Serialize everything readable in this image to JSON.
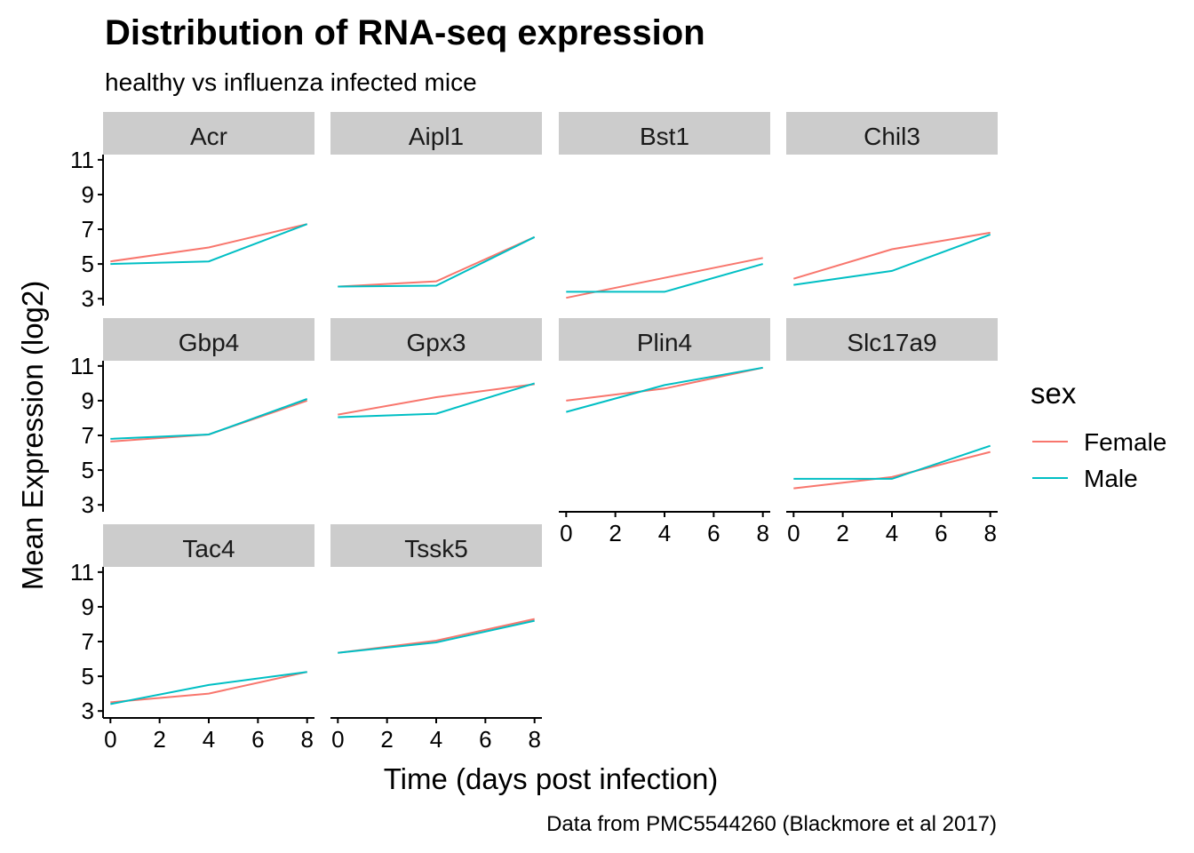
{
  "chart_data": {
    "type": "line",
    "title": "Distribution of RNA-seq expression",
    "subtitle": "healthy vs influenza infected mice",
    "xlabel": "Time (days post infection)",
    "ylabel": "Mean Expression (log2)",
    "caption": "Data from PMC5544260 (Blackmore et al 2017)",
    "x_ticks": [
      "0",
      "2",
      "4",
      "6",
      "8"
    ],
    "y_ticks": [
      "3",
      "5",
      "7",
      "9",
      "11"
    ],
    "xlim": [
      -0.3,
      8.3
    ],
    "ylim": [
      2.6,
      11.3
    ],
    "grid": false,
    "legend": {
      "title": "sex",
      "position": "right",
      "entries": [
        {
          "name": "Female",
          "color": "#F8766D"
        },
        {
          "name": "Male",
          "color": "#00BFC4"
        }
      ]
    },
    "x": [
      0,
      4,
      8
    ],
    "panels": [
      {
        "name": "Acr",
        "series": [
          {
            "name": "Female",
            "values": [
              5.15,
              5.95,
              7.3
            ]
          },
          {
            "name": "Male",
            "values": [
              5.0,
              5.15,
              7.3
            ]
          }
        ]
      },
      {
        "name": "Aipl1",
        "series": [
          {
            "name": "Female",
            "values": [
              3.7,
              4.0,
              6.55
            ]
          },
          {
            "name": "Male",
            "values": [
              3.7,
              3.75,
              6.55
            ]
          }
        ]
      },
      {
        "name": "Bst1",
        "series": [
          {
            "name": "Female",
            "values": [
              3.05,
              4.2,
              5.35
            ]
          },
          {
            "name": "Male",
            "values": [
              3.4,
              3.4,
              5.0
            ]
          }
        ]
      },
      {
        "name": "Chil3",
        "series": [
          {
            "name": "Female",
            "values": [
              4.15,
              5.85,
              6.8
            ]
          },
          {
            "name": "Male",
            "values": [
              3.8,
              4.6,
              6.7
            ]
          }
        ]
      },
      {
        "name": "Gbp4",
        "series": [
          {
            "name": "Female",
            "values": [
              6.65,
              7.05,
              9.0
            ]
          },
          {
            "name": "Male",
            "values": [
              6.8,
              7.05,
              9.1
            ]
          }
        ]
      },
      {
        "name": "Gpx3",
        "series": [
          {
            "name": "Female",
            "values": [
              8.2,
              9.2,
              9.95
            ]
          },
          {
            "name": "Male",
            "values": [
              8.05,
              8.25,
              10.0
            ]
          }
        ]
      },
      {
        "name": "Plin4",
        "series": [
          {
            "name": "Female",
            "values": [
              9.0,
              9.7,
              10.9
            ]
          },
          {
            "name": "Male",
            "values": [
              8.35,
              9.9,
              10.9
            ]
          }
        ]
      },
      {
        "name": "Slc17a9",
        "series": [
          {
            "name": "Female",
            "values": [
              3.95,
              4.6,
              6.05
            ]
          },
          {
            "name": "Male",
            "values": [
              4.5,
              4.5,
              6.4
            ]
          }
        ]
      },
      {
        "name": "Tac4",
        "series": [
          {
            "name": "Female",
            "values": [
              3.5,
              4.0,
              5.25
            ]
          },
          {
            "name": "Male",
            "values": [
              3.4,
              4.5,
              5.25
            ]
          }
        ]
      },
      {
        "name": "Tssk5",
        "series": [
          {
            "name": "Female",
            "values": [
              6.35,
              7.05,
              8.3
            ]
          },
          {
            "name": "Male",
            "values": [
              6.35,
              6.95,
              8.2
            ]
          }
        ]
      }
    ]
  }
}
